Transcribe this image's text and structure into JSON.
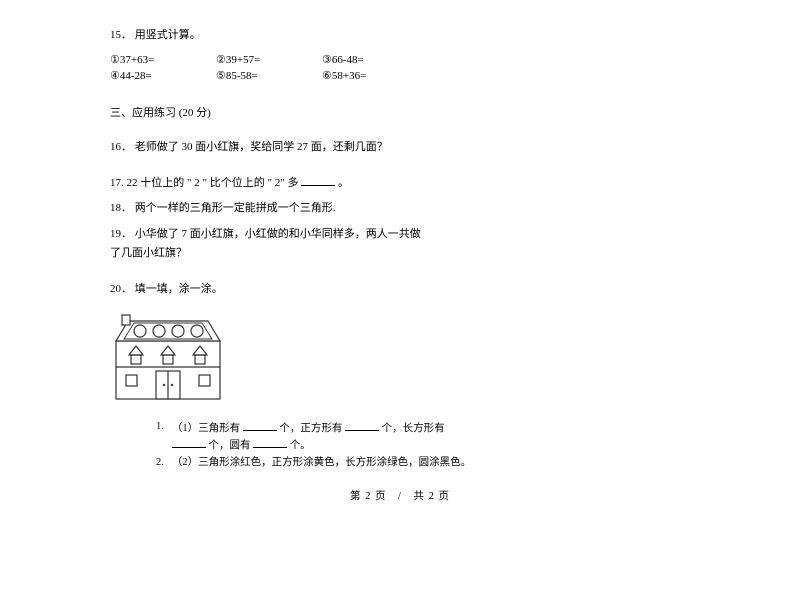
{
  "q15": {
    "num": "15．",
    "title": "用竖式计算。",
    "row1": {
      "a": "①37+63=",
      "b": "②39+57=",
      "c": "③66-48="
    },
    "row2": {
      "a": "④44-28=",
      "b": "⑤85-58=",
      "c": "⑥58+36="
    },
    "col_widths": {
      "a": 106,
      "b": 106,
      "c": 106
    }
  },
  "section3": "三、应用练习 (20 分)",
  "q16": {
    "num": "16．",
    "text": "老师做了 30 面小红旗，奖给同学   27 面，还剩几面？"
  },
  "q17": {
    "num": "17.",
    "pre": "22  十位上的 \" 2 \" 比个位上的 \" 2\" 多",
    "post": "。"
  },
  "q18": {
    "num": "18．",
    "text": "两个一样的三角形一定能拼成一个三角形."
  },
  "q19": {
    "num": "19．",
    "line1": "小华做了 7 面小红旗，小红做的和小华同样多，两人一共做",
    "line2": "了几面小红旗？"
  },
  "q20": {
    "num": "20．",
    "text": "填一填，涂一涂。"
  },
  "sub": {
    "n1": "1.",
    "s1a": "（1）三角形有",
    "s1b": "个，正方形有",
    "s1c": "个，长方形有",
    "s1d": "个，圆有",
    "s1e": "个。",
    "n2": "2.",
    "s2": "（2）三角形涂红色，正方形涂黄色，长方形涂绿色，圆涂黑色。"
  },
  "footer": "第 2 页　/　共 2 页",
  "house": {
    "width": 116,
    "height": 94,
    "stroke": "#333333",
    "stroke_width": 1.2,
    "fill": "#ffffff",
    "circle_fill": "#ffffff"
  }
}
